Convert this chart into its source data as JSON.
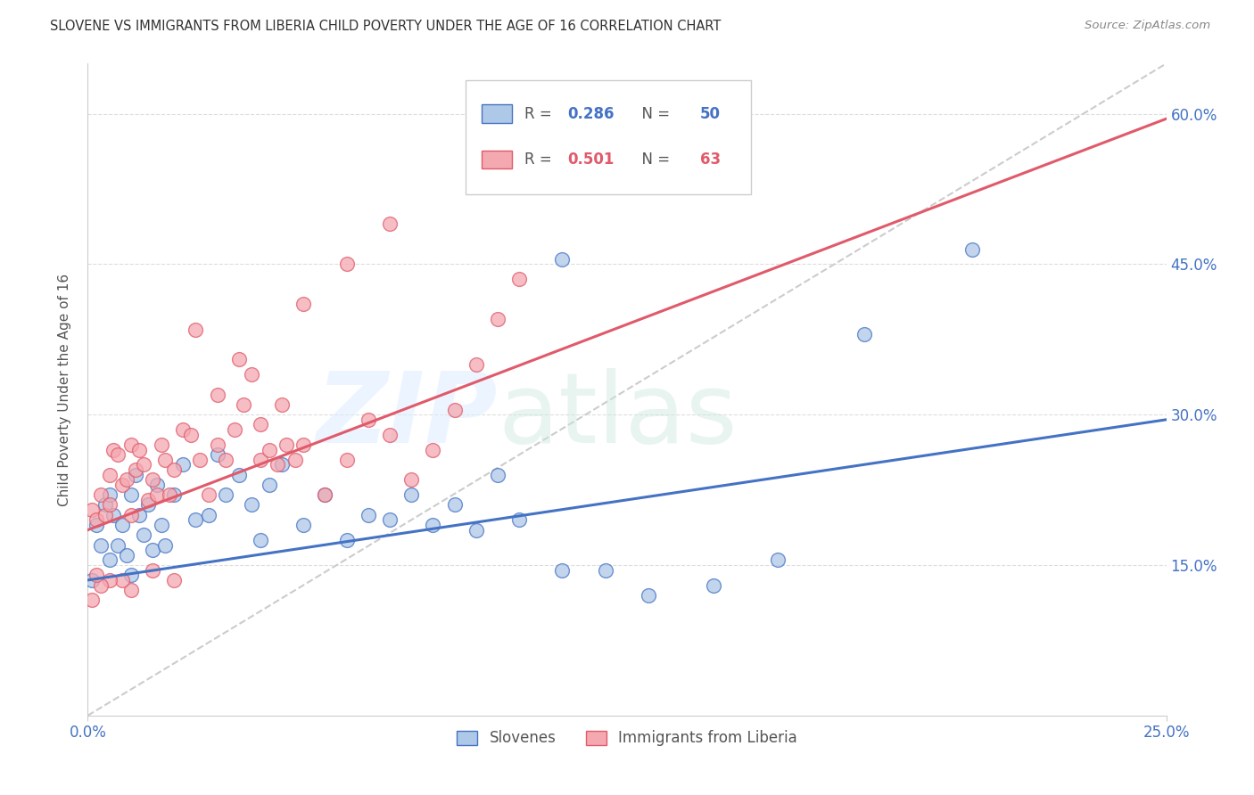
{
  "title": "SLOVENE VS IMMIGRANTS FROM LIBERIA CHILD POVERTY UNDER THE AGE OF 16 CORRELATION CHART",
  "source": "Source: ZipAtlas.com",
  "ylabel": "Child Poverty Under the Age of 16",
  "xlim": [
    0.0,
    0.25
  ],
  "ylim": [
    0.0,
    0.65
  ],
  "yticks": [
    0.15,
    0.3,
    0.45,
    0.6
  ],
  "ytick_labels": [
    "15.0%",
    "30.0%",
    "45.0%",
    "60.0%"
  ],
  "xtick_labels": [
    "0.0%",
    "25.0%"
  ],
  "xtick_pos": [
    0.0,
    0.25
  ],
  "slovene_R": 0.286,
  "slovene_N": 50,
  "liberia_R": 0.501,
  "liberia_N": 63,
  "slovene_color": "#aec8e8",
  "liberia_color": "#f4a8b0",
  "slovene_line_color": "#4472c4",
  "liberia_line_color": "#e05a6a",
  "legend_labels": [
    "Slovenes",
    "Immigrants from Liberia"
  ],
  "slovene_trend": [
    0.135,
    0.295
  ],
  "liberia_trend": [
    0.185,
    0.595
  ],
  "slovene_x": [
    0.001,
    0.002,
    0.003,
    0.004,
    0.005,
    0.005,
    0.006,
    0.007,
    0.008,
    0.009,
    0.01,
    0.01,
    0.011,
    0.012,
    0.013,
    0.014,
    0.015,
    0.016,
    0.017,
    0.018,
    0.02,
    0.022,
    0.025,
    0.028,
    0.03,
    0.032,
    0.035,
    0.038,
    0.04,
    0.042,
    0.045,
    0.05,
    0.055,
    0.06,
    0.065,
    0.07,
    0.075,
    0.08,
    0.085,
    0.09,
    0.095,
    0.1,
    0.11,
    0.12,
    0.13,
    0.145,
    0.16,
    0.18,
    0.205,
    0.11
  ],
  "slovene_y": [
    0.135,
    0.19,
    0.17,
    0.21,
    0.155,
    0.22,
    0.2,
    0.17,
    0.19,
    0.16,
    0.22,
    0.14,
    0.24,
    0.2,
    0.18,
    0.21,
    0.165,
    0.23,
    0.19,
    0.17,
    0.22,
    0.25,
    0.195,
    0.2,
    0.26,
    0.22,
    0.24,
    0.21,
    0.175,
    0.23,
    0.25,
    0.19,
    0.22,
    0.175,
    0.2,
    0.195,
    0.22,
    0.19,
    0.21,
    0.185,
    0.24,
    0.195,
    0.145,
    0.145,
    0.12,
    0.13,
    0.155,
    0.38,
    0.465,
    0.455
  ],
  "liberia_x": [
    0.001,
    0.002,
    0.003,
    0.004,
    0.005,
    0.005,
    0.006,
    0.007,
    0.008,
    0.009,
    0.01,
    0.01,
    0.011,
    0.012,
    0.013,
    0.014,
    0.015,
    0.016,
    0.017,
    0.018,
    0.019,
    0.02,
    0.022,
    0.024,
    0.026,
    0.028,
    0.03,
    0.032,
    0.034,
    0.036,
    0.038,
    0.04,
    0.042,
    0.044,
    0.046,
    0.048,
    0.05,
    0.055,
    0.06,
    0.065,
    0.07,
    0.075,
    0.08,
    0.085,
    0.09,
    0.095,
    0.1,
    0.04,
    0.025,
    0.03,
    0.035,
    0.045,
    0.015,
    0.02,
    0.01,
    0.008,
    0.005,
    0.003,
    0.002,
    0.001,
    0.05,
    0.06,
    0.07
  ],
  "liberia_y": [
    0.205,
    0.195,
    0.22,
    0.2,
    0.21,
    0.24,
    0.265,
    0.26,
    0.23,
    0.235,
    0.2,
    0.27,
    0.245,
    0.265,
    0.25,
    0.215,
    0.235,
    0.22,
    0.27,
    0.255,
    0.22,
    0.245,
    0.285,
    0.28,
    0.255,
    0.22,
    0.27,
    0.255,
    0.285,
    0.31,
    0.34,
    0.255,
    0.265,
    0.25,
    0.27,
    0.255,
    0.27,
    0.22,
    0.255,
    0.295,
    0.28,
    0.235,
    0.265,
    0.305,
    0.35,
    0.395,
    0.435,
    0.29,
    0.385,
    0.32,
    0.355,
    0.31,
    0.145,
    0.135,
    0.125,
    0.135,
    0.135,
    0.13,
    0.14,
    0.115,
    0.41,
    0.45,
    0.49
  ]
}
